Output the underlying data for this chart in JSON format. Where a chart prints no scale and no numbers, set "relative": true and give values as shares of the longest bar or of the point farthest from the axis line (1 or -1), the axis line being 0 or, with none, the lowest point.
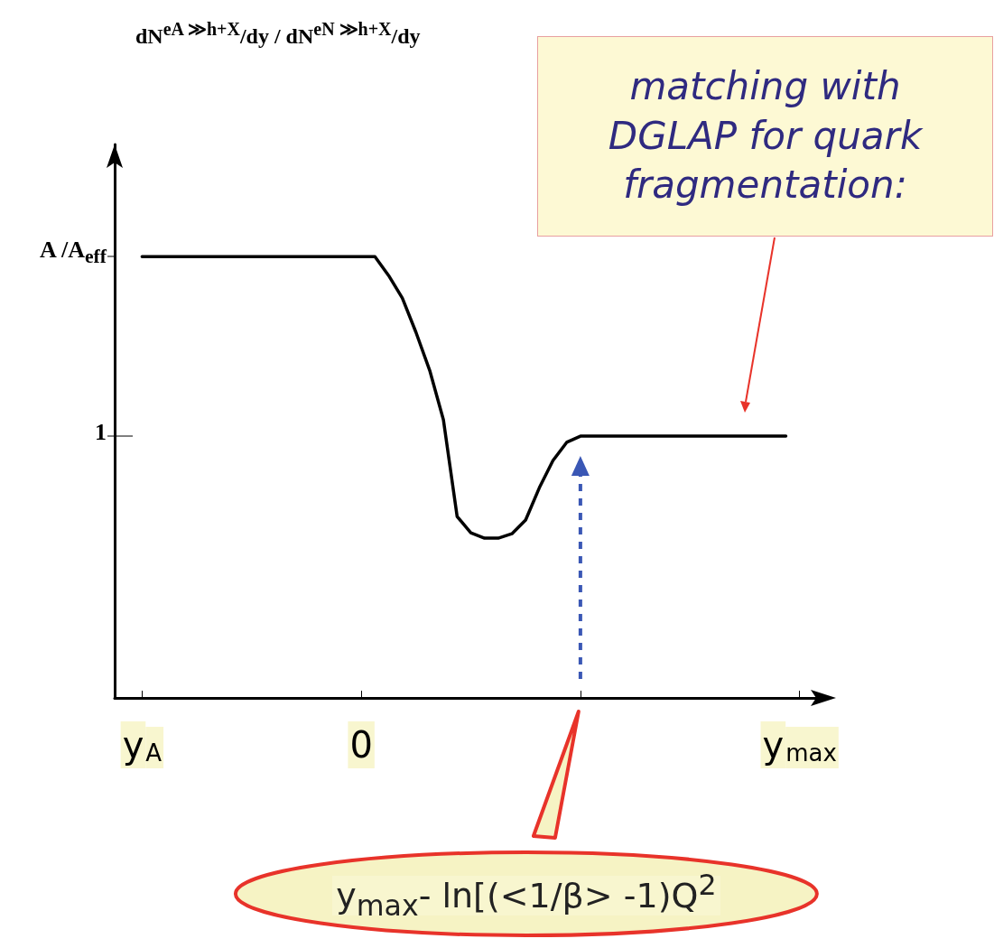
{
  "chart_data": {
    "type": "line",
    "relative": true,
    "categories": [
      null,
      null,
      "y$_{A}$",
      null,
      null,
      null,
      null,
      null,
      null,
      null,
      null,
      null,
      null,
      null,
      null,
      null,
      null,
      null,
      "0",
      null,
      null,
      null,
      null,
      null,
      null,
      null,
      null,
      null,
      null,
      null,
      null,
      null,
      null,
      null,
      null,
      null,
      null,
      null,
      null,
      null,
      null,
      null,
      null,
      null,
      null,
      null,
      null,
      null,
      null,
      null,
      "y$_{max}$",
      null,
      null
    ],
    "series": [
      {
        "color": "#000000",
        "values": [
          null,
          null,
          1,
          1,
          1,
          1,
          1,
          1,
          1,
          1,
          1,
          1,
          1,
          1,
          1,
          1,
          1,
          1,
          1,
          1,
          0.957,
          0.906,
          0.828,
          0.742,
          0.63,
          0.411,
          0.374,
          0.362,
          0.362,
          0.372,
          0.403,
          0.476,
          0.538,
          0.579,
          0.593,
          0.593,
          0.593,
          0.593,
          0.593,
          0.593,
          0.593,
          0.593,
          0.593,
          0.593,
          0.593,
          0.593,
          0.593,
          0.593,
          0.593,
          0.593,
          null,
          null,
          null
        ]
      }
    ],
    "marker": "none",
    "line_style": "solid",
    "annotations": [
      "dN$^{eA ≫h+X}$/dy / dN$^{eN ≫h+X}$/dy",
      "A /A$_{eff}$",
      "1",
      "matching with DGLAP for quark fragmentation:",
      "y$_{max}$- ln[(<1/β> -1)Q$^{2}$"
    ]
  }
}
